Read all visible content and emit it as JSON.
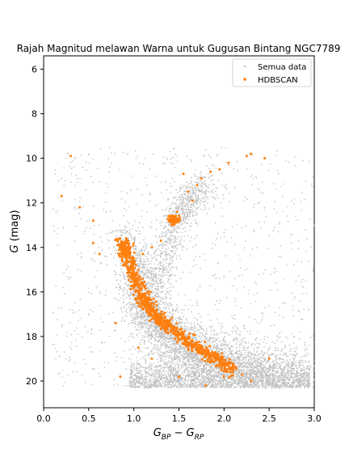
{
  "chart_data": {
    "type": "scatter",
    "title": "Rajah Magnitud melawan Warna untuk Gugusan Bintang NGC7789",
    "xlabel_parts": {
      "main": "G",
      "sub1": "BP",
      "minus": " − ",
      "main2": "G",
      "sub2": "RP"
    },
    "ylabel_parts": {
      "main": "G",
      "unit": " (mag)"
    },
    "xlim": [
      0.0,
      3.0
    ],
    "ylim": [
      21.2,
      5.4
    ],
    "y_inverted": true,
    "xticks": [
      "0.0",
      "0.5",
      "1.0",
      "1.5",
      "2.0",
      "2.5",
      "3.0"
    ],
    "yticks": [
      "6",
      "8",
      "10",
      "12",
      "14",
      "16",
      "18",
      "20"
    ],
    "grid": false,
    "legend_position": "top-right",
    "series": [
      {
        "name": "Semua data",
        "color": "#c0c0c0",
        "marker": "small dot",
        "features": {
          "main_sequence": [
            [
              0.9,
              13.2
            ],
            [
              1.0,
              15.0
            ],
            [
              1.1,
              16.4
            ],
            [
              1.2,
              17.3
            ],
            [
              1.4,
              18.0
            ],
            [
              1.6,
              18.6
            ],
            [
              1.9,
              19.0
            ],
            [
              2.3,
              19.4
            ],
            [
              2.8,
              19.7
            ]
          ],
          "giant_branch": [
            [
              1.2,
              16.0
            ],
            [
              1.35,
              14.5
            ],
            [
              1.45,
              12.8
            ],
            [
              1.6,
              12.0
            ],
            [
              1.8,
              11.0
            ]
          ],
          "faint_cutoff": 20.3
        }
      },
      {
        "name": "HDBSCAN",
        "color": "#ff7f0e",
        "marker": "dot",
        "points": [
          [
            0.3,
            9.9
          ],
          [
            0.2,
            11.7
          ],
          [
            0.4,
            12.2
          ],
          [
            0.55,
            12.8
          ],
          [
            0.55,
            13.8
          ],
          [
            0.62,
            14.3
          ],
          [
            0.85,
            13.6
          ],
          [
            0.9,
            13.9
          ],
          [
            0.95,
            14.2
          ],
          [
            1.0,
            14.5
          ],
          [
            0.9,
            14.8
          ],
          [
            1.05,
            15.0
          ],
          [
            1.1,
            15.6
          ],
          [
            1.15,
            16.0
          ],
          [
            1.2,
            16.5
          ],
          [
            1.25,
            16.8
          ],
          [
            1.3,
            17.1
          ],
          [
            1.35,
            17.3
          ],
          [
            1.45,
            17.6
          ],
          [
            1.55,
            17.9
          ],
          [
            1.65,
            18.2
          ],
          [
            1.75,
            18.5
          ],
          [
            1.85,
            18.8
          ],
          [
            1.95,
            19.1
          ],
          [
            2.1,
            19.3
          ],
          [
            2.2,
            19.7
          ],
          [
            2.3,
            20.0
          ],
          [
            2.5,
            19.0
          ],
          [
            1.8,
            20.2
          ],
          [
            1.5,
            19.8
          ],
          [
            1.4,
            12.6
          ],
          [
            1.45,
            12.9
          ],
          [
            1.5,
            12.7
          ],
          [
            1.48,
            12.4
          ],
          [
            1.42,
            13.0
          ],
          [
            1.6,
            11.5
          ],
          [
            1.65,
            11.9
          ],
          [
            1.7,
            11.2
          ],
          [
            1.75,
            10.9
          ],
          [
            1.85,
            10.6
          ],
          [
            1.95,
            10.5
          ],
          [
            2.05,
            10.2
          ],
          [
            2.25,
            9.9
          ],
          [
            2.3,
            9.8
          ],
          [
            2.45,
            10.0
          ],
          [
            1.55,
            10.7
          ],
          [
            1.3,
            13.7
          ],
          [
            1.2,
            14.0
          ],
          [
            1.1,
            14.3
          ],
          [
            0.8,
            17.4
          ],
          [
            0.85,
            19.8
          ],
          [
            1.05,
            18.5
          ],
          [
            1.2,
            19.0
          ]
        ]
      }
    ]
  }
}
